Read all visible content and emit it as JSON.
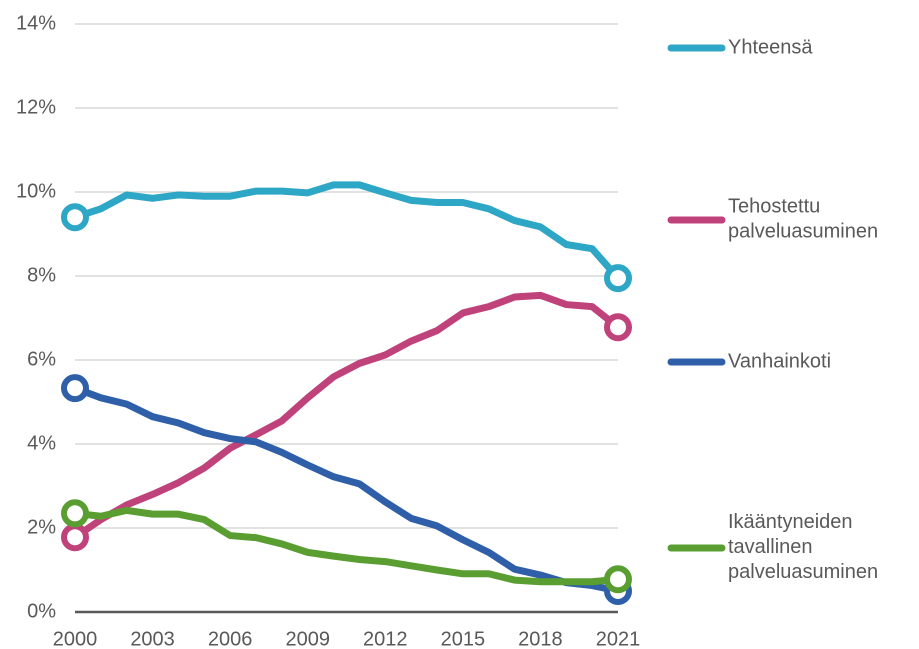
{
  "chart_data": {
    "type": "line",
    "x": [
      2000,
      2001,
      2002,
      2003,
      2004,
      2005,
      2006,
      2007,
      2008,
      2009,
      2010,
      2011,
      2012,
      2013,
      2014,
      2015,
      2016,
      2017,
      2018,
      2019,
      2020,
      2021
    ],
    "series": [
      {
        "name": "Yhteensä",
        "color": "#2ea6c6",
        "values": [
          9.4,
          9.6,
          9.93,
          9.85,
          9.93,
          9.9,
          9.9,
          10.02,
          10.02,
          9.98,
          10.17,
          10.17,
          9.98,
          9.8,
          9.75,
          9.75,
          9.6,
          9.32,
          9.17,
          8.75,
          8.65,
          7.95
        ]
      },
      {
        "name": "Tehostettu palveluasuminen",
        "color": "#c0427a",
        "values": [
          1.78,
          2.2,
          2.55,
          2.8,
          3.08,
          3.43,
          3.9,
          4.22,
          4.55,
          5.1,
          5.6,
          5.92,
          6.12,
          6.45,
          6.7,
          7.12,
          7.27,
          7.5,
          7.54,
          7.32,
          7.27,
          6.78
        ]
      },
      {
        "name": "Vanhainkoti",
        "color": "#2e5fa8",
        "values": [
          5.33,
          5.1,
          4.95,
          4.65,
          4.5,
          4.27,
          4.13,
          4.05,
          3.8,
          3.5,
          3.22,
          3.05,
          2.62,
          2.23,
          2.05,
          1.72,
          1.42,
          1.02,
          0.88,
          0.7,
          0.63,
          0.5
        ]
      },
      {
        "name": "Ikääntyneiden tavallinen palveluasuminen",
        "color": "#5a9e32",
        "values": [
          2.35,
          2.28,
          2.42,
          2.33,
          2.33,
          2.2,
          1.82,
          1.77,
          1.62,
          1.42,
          1.33,
          1.25,
          1.2,
          1.1,
          1.0,
          0.91,
          0.91,
          0.76,
          0.72,
          0.72,
          0.72,
          0.78
        ]
      }
    ],
    "xlim": [
      2000,
      2021
    ],
    "xticks": [
      2000,
      2003,
      2006,
      2009,
      2012,
      2015,
      2018,
      2021
    ],
    "ylim": [
      0,
      14
    ],
    "yticks": [
      {
        "value": 0,
        "label": "0%"
      },
      {
        "value": 2,
        "label": "2%"
      },
      {
        "value": 4,
        "label": "4%"
      },
      {
        "value": 6,
        "label": "6%"
      },
      {
        "value": 8,
        "label": "8%"
      },
      {
        "value": 10,
        "label": "10%"
      },
      {
        "value": 12,
        "label": "12%"
      },
      {
        "value": 14,
        "label": "14%"
      }
    ],
    "grid": true,
    "legend": "right"
  }
}
